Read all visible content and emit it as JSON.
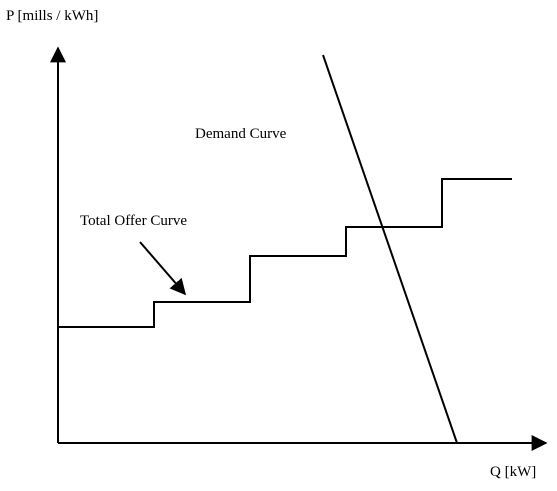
{
  "axes": {
    "y_label": "P [mills / kWh]",
    "x_label": "Q [kW]"
  },
  "curves": {
    "demand": "Demand Curve",
    "offer": "Total Offer Curve"
  }
}
